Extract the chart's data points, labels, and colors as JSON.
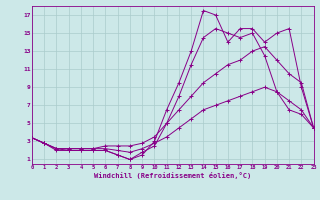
{
  "xlabel": "Windchill (Refroidissement éolien,°C)",
  "background_color": "#cce8e8",
  "line_color": "#880088",
  "grid_color": "#aacccc",
  "xlim": [
    0,
    23
  ],
  "ylim": [
    0.5,
    18
  ],
  "xticks": [
    0,
    1,
    2,
    3,
    4,
    5,
    6,
    7,
    8,
    9,
    10,
    11,
    12,
    13,
    14,
    15,
    16,
    17,
    18,
    19,
    20,
    21,
    22,
    23
  ],
  "yticks": [
    1,
    3,
    5,
    7,
    9,
    11,
    13,
    15,
    17
  ],
  "curves": [
    {
      "x": [
        0,
        1,
        2,
        3,
        4,
        5,
        6,
        7,
        8,
        9,
        10,
        11,
        12,
        13,
        14,
        15,
        16,
        17,
        18,
        19,
        20,
        21,
        22,
        23
      ],
      "y": [
        3.4,
        2.8,
        2.2,
        2.0,
        2.0,
        2.0,
        2.0,
        1.5,
        1.0,
        1.5,
        3.0,
        6.5,
        9.5,
        13.0,
        17.5,
        17.0,
        14.0,
        15.5,
        15.5,
        14.0,
        15.0,
        15.5,
        9.0,
        4.5
      ]
    },
    {
      "x": [
        0,
        1,
        2,
        3,
        4,
        5,
        6,
        7,
        8,
        9,
        10,
        11,
        12,
        13,
        14,
        15,
        16,
        17,
        18,
        19,
        20,
        21,
        22,
        23
      ],
      "y": [
        3.4,
        2.8,
        2.0,
        2.0,
        2.0,
        2.0,
        2.0,
        1.5,
        1.0,
        1.8,
        2.5,
        5.0,
        8.0,
        11.5,
        14.5,
        15.5,
        15.0,
        14.5,
        15.0,
        12.5,
        8.5,
        6.5,
        6.0,
        4.5
      ]
    },
    {
      "x": [
        0,
        1,
        2,
        3,
        4,
        5,
        6,
        7,
        8,
        9,
        10,
        11,
        12,
        13,
        14,
        15,
        16,
        17,
        18,
        19,
        20,
        21,
        22,
        23
      ],
      "y": [
        3.4,
        2.8,
        2.2,
        2.2,
        2.2,
        2.2,
        2.5,
        2.5,
        2.5,
        2.8,
        3.5,
        5.0,
        6.5,
        8.0,
        9.5,
        10.5,
        11.5,
        12.0,
        13.0,
        13.5,
        12.0,
        10.5,
        9.5,
        4.5
      ]
    },
    {
      "x": [
        0,
        1,
        2,
        3,
        4,
        5,
        6,
        7,
        8,
        9,
        10,
        11,
        12,
        13,
        14,
        15,
        16,
        17,
        18,
        19,
        20,
        21,
        22,
        23
      ],
      "y": [
        3.4,
        2.8,
        2.2,
        2.2,
        2.2,
        2.2,
        2.2,
        2.0,
        1.8,
        2.2,
        2.8,
        3.5,
        4.5,
        5.5,
        6.5,
        7.0,
        7.5,
        8.0,
        8.5,
        9.0,
        8.5,
        7.5,
        6.5,
        4.5
      ]
    }
  ]
}
